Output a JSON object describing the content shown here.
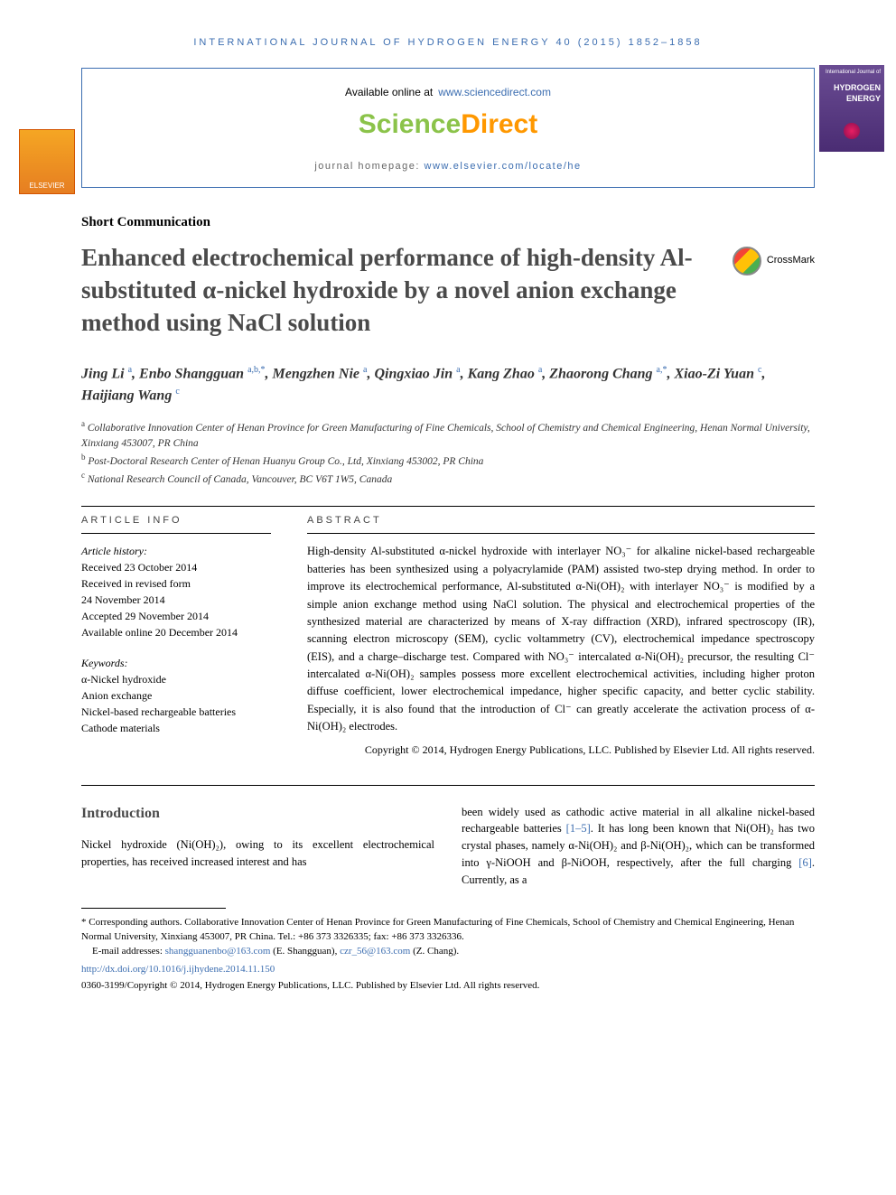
{
  "running_head": "INTERNATIONAL JOURNAL OF HYDROGEN ENERGY 40 (2015) 1852–1858",
  "header": {
    "available_label": "Available online at",
    "available_link": "www.sciencedirect.com",
    "brand_sci": "Science",
    "brand_direct": "Direct",
    "homepage_label": "journal homepage:",
    "homepage_link": "www.elsevier.com/locate/he",
    "publisher_logo": "ELSEVIER",
    "journal_cover_top": "International Journal of",
    "journal_cover_name": "HYDROGEN ENERGY"
  },
  "article_type": "Short Communication",
  "title": "Enhanced electrochemical performance of high-density Al-substituted α-nickel hydroxide by a novel anion exchange method using NaCl solution",
  "crossmark_label": "CrossMark",
  "authors_html": "Jing Li <sup>a</sup>, Enbo Shangguan <sup>a,b,*</sup>, Mengzhen Nie <sup>a</sup>, Qingxiao Jin <sup>a</sup>, Kang Zhao <sup>a</sup>, Zhaorong Chang <sup>a,*</sup>, Xiao-Zi Yuan <sup>c</sup>, Haijiang Wang <sup>c</sup>",
  "affiliations": [
    {
      "sup": "a",
      "text": "Collaborative Innovation Center of Henan Province for Green Manufacturing of Fine Chemicals, School of Chemistry and Chemical Engineering, Henan Normal University, Xinxiang 453007, PR China"
    },
    {
      "sup": "b",
      "text": "Post-Doctoral Research Center of Henan Huanyu Group Co., Ltd, Xinxiang 453002, PR China"
    },
    {
      "sup": "c",
      "text": "National Research Council of Canada, Vancouver, BC V6T 1W5, Canada"
    }
  ],
  "info": {
    "head": "ARTICLE INFO",
    "history_label": "Article history:",
    "history": [
      "Received 23 October 2014",
      "Received in revised form",
      "24 November 2014",
      "Accepted 29 November 2014",
      "Available online 20 December 2014"
    ],
    "keywords_label": "Keywords:",
    "keywords": [
      "α-Nickel hydroxide",
      "Anion exchange",
      "Nickel-based rechargeable batteries",
      "Cathode materials"
    ]
  },
  "abstract": {
    "head": "ABSTRACT",
    "text": "High-density Al-substituted α-nickel hydroxide with interlayer NO₃⁻ for alkaline nickel-based rechargeable batteries has been synthesized using a polyacrylamide (PAM) assisted two-step drying method. In order to improve its electrochemical performance, Al-substituted α-Ni(OH)₂ with interlayer NO₃⁻ is modified by a simple anion exchange method using NaCl solution. The physical and electrochemical properties of the synthesized material are characterized by means of X-ray diffraction (XRD), infrared spectroscopy (IR), scanning electron microscopy (SEM), cyclic voltammetry (CV), electrochemical impedance spectroscopy (EIS), and a charge–discharge test. Compared with NO₃⁻ intercalated α-Ni(OH)₂ precursor, the resulting Cl⁻ intercalated α-Ni(OH)₂ samples possess more excellent electrochemical activities, including higher proton diffuse coefficient, lower electrochemical impedance, higher specific capacity, and better cyclic stability. Especially, it is also found that the introduction of Cl⁻ can greatly accelerate the activation process of α-Ni(OH)₂ electrodes.",
    "copyright": "Copyright © 2014, Hydrogen Energy Publications, LLC. Published by Elsevier Ltd. All rights reserved."
  },
  "body": {
    "intro_head": "Introduction",
    "col1": "Nickel hydroxide (Ni(OH)₂), owing to its excellent electrochemical properties, has received increased interest and has",
    "col2_a": "been widely used as cathodic active material in all alkaline nickel-based rechargeable batteries ",
    "col2_ref1": "[1–5]",
    "col2_b": ". It has long been known that Ni(OH)₂ has two crystal phases, namely α-Ni(OH)₂ and β-Ni(OH)₂, which can be transformed into γ-NiOOH and β-NiOOH, respectively, after the full charging ",
    "col2_ref2": "[6]",
    "col2_c": ". Currently, as a"
  },
  "footnotes": {
    "corr": "* Corresponding authors. Collaborative Innovation Center of Henan Province for Green Manufacturing of Fine Chemicals, School of Chemistry and Chemical Engineering, Henan Normal University, Xinxiang 453007, PR China. Tel.: +86 373 3326335; fax: +86 373 3326336.",
    "email_label": "E-mail addresses:",
    "email1": "shangguanenbo@163.com",
    "email1_name": "(E. Shangguan),",
    "email2": "czr_56@163.com",
    "email2_name": "(Z. Chang).",
    "doi": "http://dx.doi.org/10.1016/j.ijhydene.2014.11.150",
    "issn_line": "0360-3199/Copyright © 2014, Hydrogen Energy Publications, LLC. Published by Elsevier Ltd. All rights reserved."
  },
  "colors": {
    "link": "#3b6db0",
    "brand_green": "#8bc34a",
    "brand_orange": "#ff9800",
    "title_gray": "#4a4a4a"
  }
}
